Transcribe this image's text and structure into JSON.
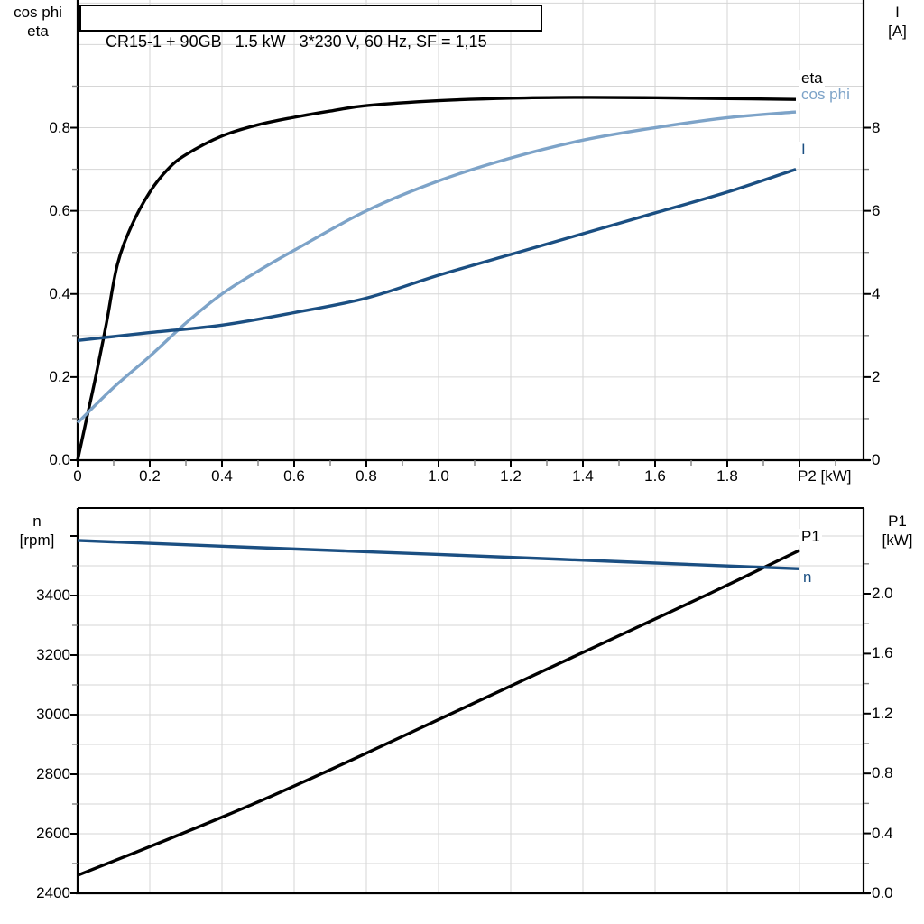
{
  "title": "CR15-1 + 90GB   1.5 kW   3*230 V, 60 Hz, SF = 1,15",
  "colors": {
    "black": "#000000",
    "dark_blue": "#1b4f82",
    "light_blue": "#7da3c8",
    "grid": "#d6d6d6",
    "minor_tick": "#7f7f7f"
  },
  "top_chart": {
    "y_left_label_line1": "cos phi",
    "y_left_label_line2": "eta",
    "y_right_label_line1": "I",
    "y_right_label_line2": "[A]",
    "x_axis_label": "P2 [kW]",
    "x_tick_labels": [
      "0",
      "0.2",
      "0.4",
      "0.6",
      "0.8",
      "1.0",
      "1.2",
      "1.4",
      "1.6",
      "1.8"
    ],
    "y_left_tick_labels": [
      "0.0",
      "0.2",
      "0.4",
      "0.6",
      "0.8"
    ],
    "y_right_tick_labels": [
      "0",
      "2",
      "4",
      "6",
      "8"
    ],
    "curve_labels": {
      "eta": "eta",
      "cos_phi": "cos phi",
      "current": "I"
    }
  },
  "bottom_chart": {
    "y_left_label_line1": "n",
    "y_left_label_line2": "[rpm]",
    "y_right_label_line1": "P1",
    "y_right_label_line2": "[kW]",
    "y_left_tick_labels": [
      "2400",
      "2600",
      "2800",
      "3000",
      "3200",
      "3400"
    ],
    "y_right_tick_labels": [
      "0.0",
      "0.4",
      "0.8",
      "1.2",
      "1.6",
      "2.0"
    ],
    "curve_labels": {
      "p1": "P1",
      "n": "n"
    }
  },
  "chart_data": [
    {
      "type": "line",
      "title": "CR15-1 + 90GB   1.5 kW   3*230 V, 60 Hz, SF = 1,15",
      "xlabel": "P2 [kW]",
      "xlim": [
        0,
        2.18
      ],
      "x_tick_step": 0.2,
      "grid": true,
      "y_left": {
        "label": "cos phi / eta",
        "lim": [
          0,
          1.1
        ],
        "tick_step": 0.2
      },
      "y_right": {
        "label": "I [A]",
        "lim": [
          0,
          11
        ],
        "tick_step": 2
      },
      "series": [
        {
          "name": "eta",
          "axis": "left",
          "color": "black",
          "x": [
            0,
            0.03,
            0.05,
            0.08,
            0.11,
            0.15,
            0.2,
            0.25,
            0.3,
            0.4,
            0.5,
            0.6,
            0.7,
            0.8,
            1.0,
            1.2,
            1.4,
            1.6,
            1.8,
            1.99
          ],
          "y": [
            0,
            0.12,
            0.2,
            0.33,
            0.47,
            0.565,
            0.645,
            0.7,
            0.735,
            0.78,
            0.807,
            0.825,
            0.84,
            0.853,
            0.865,
            0.871,
            0.873,
            0.872,
            0.87,
            0.868
          ]
        },
        {
          "name": "cos phi",
          "axis": "left",
          "color": "light_blue",
          "x": [
            0,
            0.1,
            0.2,
            0.3,
            0.4,
            0.5,
            0.6,
            0.8,
            1.0,
            1.2,
            1.4,
            1.6,
            1.8,
            1.99
          ],
          "y": [
            0.09,
            0.175,
            0.25,
            0.33,
            0.4,
            0.455,
            0.505,
            0.6,
            0.672,
            0.727,
            0.77,
            0.8,
            0.824,
            0.838
          ]
        },
        {
          "name": "I",
          "axis": "right",
          "color": "dark_blue",
          "x": [
            0,
            0.2,
            0.4,
            0.6,
            0.8,
            1.0,
            1.2,
            1.4,
            1.6,
            1.8,
            1.99
          ],
          "y": [
            2.88,
            3.07,
            3.25,
            3.55,
            3.9,
            4.45,
            4.95,
            5.45,
            5.95,
            6.45,
            7.0
          ]
        }
      ]
    },
    {
      "type": "line",
      "xlabel": "P2 [kW]",
      "xlim": [
        0,
        2.18
      ],
      "grid": true,
      "y_left": {
        "label": "n [rpm]",
        "lim": [
          2400,
          3700
        ],
        "tick_step": 200
      },
      "y_right": {
        "label": "P1 [kW]",
        "lim": [
          0,
          2.57
        ],
        "tick_step": 0.4
      },
      "series": [
        {
          "name": "P1",
          "axis": "right",
          "color": "black",
          "x": [
            0,
            0.25,
            0.5,
            0.75,
            1.0,
            1.25,
            1.5,
            1.75,
            2.0
          ],
          "y": [
            0.12,
            0.36,
            0.61,
            0.88,
            1.16,
            1.44,
            1.72,
            2.0,
            2.29
          ]
        },
        {
          "name": "n",
          "axis": "left",
          "color": "dark_blue",
          "x": [
            0,
            0.5,
            1.0,
            1.5,
            2.0
          ],
          "y": [
            3585,
            3561,
            3538,
            3514,
            3490
          ]
        }
      ]
    }
  ]
}
